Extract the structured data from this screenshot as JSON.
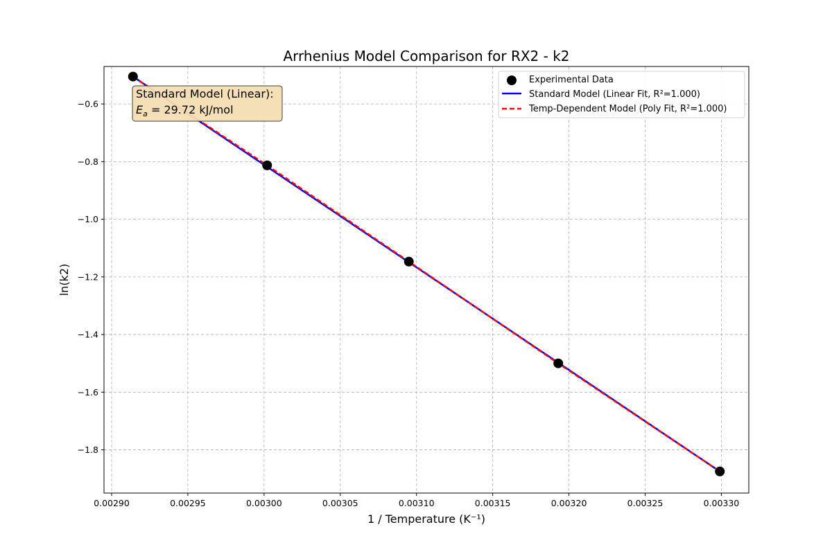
{
  "chart_data": {
    "type": "scatter",
    "title": "Arrhenius Model Comparison for RX2 - k2",
    "xlabel": "1 / Temperature (K⁻¹)",
    "ylabel": "ln(k2)",
    "xlim": [
      0.002895,
      0.003318
    ],
    "ylim": [
      -1.95,
      -0.47
    ],
    "xticks": [
      0.0029,
      0.00295,
      0.003,
      0.00305,
      0.0031,
      0.00315,
      0.0032,
      0.00325,
      0.0033
    ],
    "xtick_labels": [
      "0.00290",
      "0.00295",
      "0.00300",
      "0.00305",
      "0.00310",
      "0.00315",
      "0.00320",
      "0.00325",
      "0.00330"
    ],
    "yticks": [
      -1.8,
      -1.6,
      -1.4,
      -1.2,
      -1.0,
      -0.8,
      -0.6
    ],
    "ytick_labels": [
      "−1.8",
      "−1.6",
      "−1.4",
      "−1.2",
      "−1.0",
      "−0.8",
      "−0.6"
    ],
    "grid": true,
    "legend_position": "top-right",
    "series": [
      {
        "name": "Experimental Data",
        "kind": "scatter",
        "color": "#000000",
        "x": [
          0.002914,
          0.003002,
          0.003095,
          0.003193,
          0.003299
        ],
        "y": [
          -0.505,
          -0.813,
          -1.147,
          -1.5,
          -1.875
        ]
      },
      {
        "name": "Standard Model (Linear Fit, R²=1.000)",
        "kind": "line",
        "color": "#0000ff",
        "style": "solid",
        "x": [
          0.002914,
          0.003299
        ],
        "y": [
          -0.505,
          -1.875
        ]
      },
      {
        "name": "Temp-Dependent Model (Poly Fit, R²=1.000)",
        "kind": "line",
        "color": "#ff0000",
        "style": "dashed",
        "x": [
          0.002914,
          0.003002,
          0.003095,
          0.003193,
          0.003299
        ],
        "y": [
          -0.505,
          -0.813,
          -1.147,
          -1.5,
          -1.875
        ]
      }
    ],
    "annotation": {
      "line1": "Standard Model (Linear):",
      "ea_symbol": "E",
      "ea_subscript": "a",
      "ea_value": " = 29.72 kJ/mol",
      "background": "#f5deb3"
    }
  }
}
